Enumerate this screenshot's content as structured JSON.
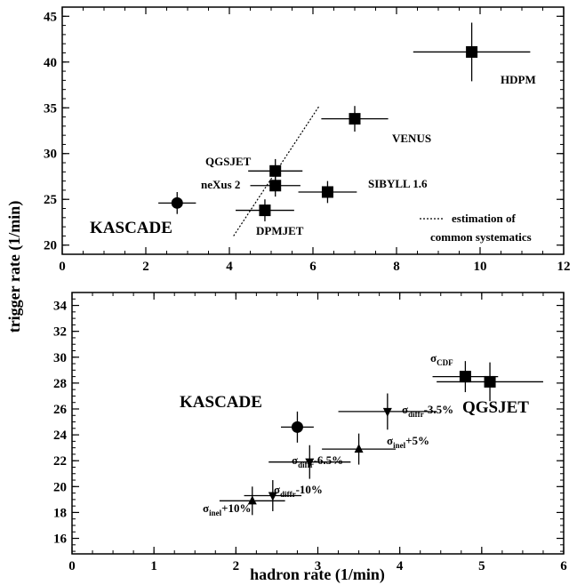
{
  "y_label": "trigger rate (1/min)",
  "chart_data": [
    {
      "type": "scatter",
      "x_label": "",
      "y_label": "trigger rate (1/min)",
      "xlim": [
        0,
        12
      ],
      "ylim": [
        19,
        46
      ],
      "x_ticks": [
        0,
        2,
        4,
        6,
        8,
        10,
        12
      ],
      "y_ticks": [
        20,
        25,
        30,
        35,
        40,
        45
      ],
      "points": [
        {
          "name": "KASCADE",
          "label": "KASCADE",
          "marker": "circle",
          "x": 2.75,
          "y": 24.6,
          "xerr": 0.45,
          "yerr": 1.2
        },
        {
          "name": "DPMJET",
          "label": "DPMJET",
          "marker": "square",
          "x": 4.85,
          "y": 23.8,
          "xerr": 0.7,
          "yerr": 1.2
        },
        {
          "name": "neXus 2",
          "label": "neXus 2",
          "marker": "square",
          "x": 5.1,
          "y": 26.5,
          "xerr": 0.6,
          "yerr": 1.2
        },
        {
          "name": "QGSJET",
          "label": "QGSJET",
          "marker": "square",
          "x": 5.1,
          "y": 28.1,
          "xerr": 0.65,
          "yerr": 1.3
        },
        {
          "name": "SIBYLL 1.6",
          "label": "SIBYLL 1.6",
          "marker": "square",
          "x": 6.35,
          "y": 25.8,
          "xerr": 0.7,
          "yerr": 1.2
        },
        {
          "name": "VENUS",
          "label": "VENUS",
          "marker": "square",
          "x": 7.0,
          "y": 33.8,
          "xerr": 0.8,
          "yerr": 1.4
        },
        {
          "name": "HDPM",
          "label": "HDPM",
          "marker": "square",
          "x": 9.8,
          "y": 41.1,
          "xerr": 1.4,
          "yerr": 3.2
        }
      ],
      "systematics_line": {
        "x": [
          4.1,
          6.15
        ],
        "y": [
          21.0,
          35.2
        ]
      },
      "legend": {
        "line1": "estimation of",
        "line2": "common systematics",
        "position": "bottom-right"
      }
    },
    {
      "type": "scatter",
      "x_label": "hadron rate (1/min)",
      "y_label": "trigger rate (1/min)",
      "xlim": [
        0,
        6
      ],
      "ylim": [
        14.8,
        35
      ],
      "x_ticks": [
        0,
        1,
        2,
        3,
        4,
        5,
        6
      ],
      "y_ticks": [
        16,
        18,
        20,
        22,
        24,
        26,
        28,
        30,
        32,
        34
      ],
      "points": [
        {
          "name": "KASCADE",
          "marker": "circle",
          "x": 2.75,
          "y": 24.6,
          "xerr": 0.2,
          "yerr": 1.2
        },
        {
          "name": "QGSJET",
          "marker": "square",
          "x": 5.1,
          "y": 28.1,
          "xerr": 0.65,
          "yerr": 1.5
        },
        {
          "name": "sigma_CDF",
          "marker": "square",
          "x": 4.8,
          "y": 28.5,
          "xerr": 0.4,
          "yerr": 1.2
        },
        {
          "name": "sigma_diffr-3.5%",
          "marker": "triangle-down",
          "x": 3.85,
          "y": 25.8,
          "xerr": 0.6,
          "yerr": 1.4
        },
        {
          "name": "sigma_inel+5%",
          "marker": "triangle-up",
          "x": 3.5,
          "y": 22.9,
          "xerr": 0.45,
          "yerr": 1.2
        },
        {
          "name": "sigma_diffr-6.5%",
          "marker": "triangle-down",
          "x": 2.9,
          "y": 21.9,
          "xerr": 0.5,
          "yerr": 1.3
        },
        {
          "name": "sigma_diffr-10%",
          "marker": "triangle-down",
          "x": 2.45,
          "y": 19.3,
          "xerr": 0.35,
          "yerr": 1.2
        },
        {
          "name": "sigma_inel+10%",
          "marker": "triangle-up",
          "x": 2.2,
          "y": 18.9,
          "xerr": 0.4,
          "yerr": 1.1
        }
      ],
      "annotations": {
        "kascade": "KASCADE",
        "qgsjet": "QGSJET",
        "sigma": "σ",
        "cdf_sub": "CDF",
        "diffr_sub": "diffr",
        "inel_sub": "inel",
        "diffr35_tail": "-3.5%",
        "inel5_tail": "+5%",
        "diffr65_tail": "-6.5%",
        "diffr10_tail": "-10%",
        "inel10_tail": "+10%"
      }
    }
  ]
}
